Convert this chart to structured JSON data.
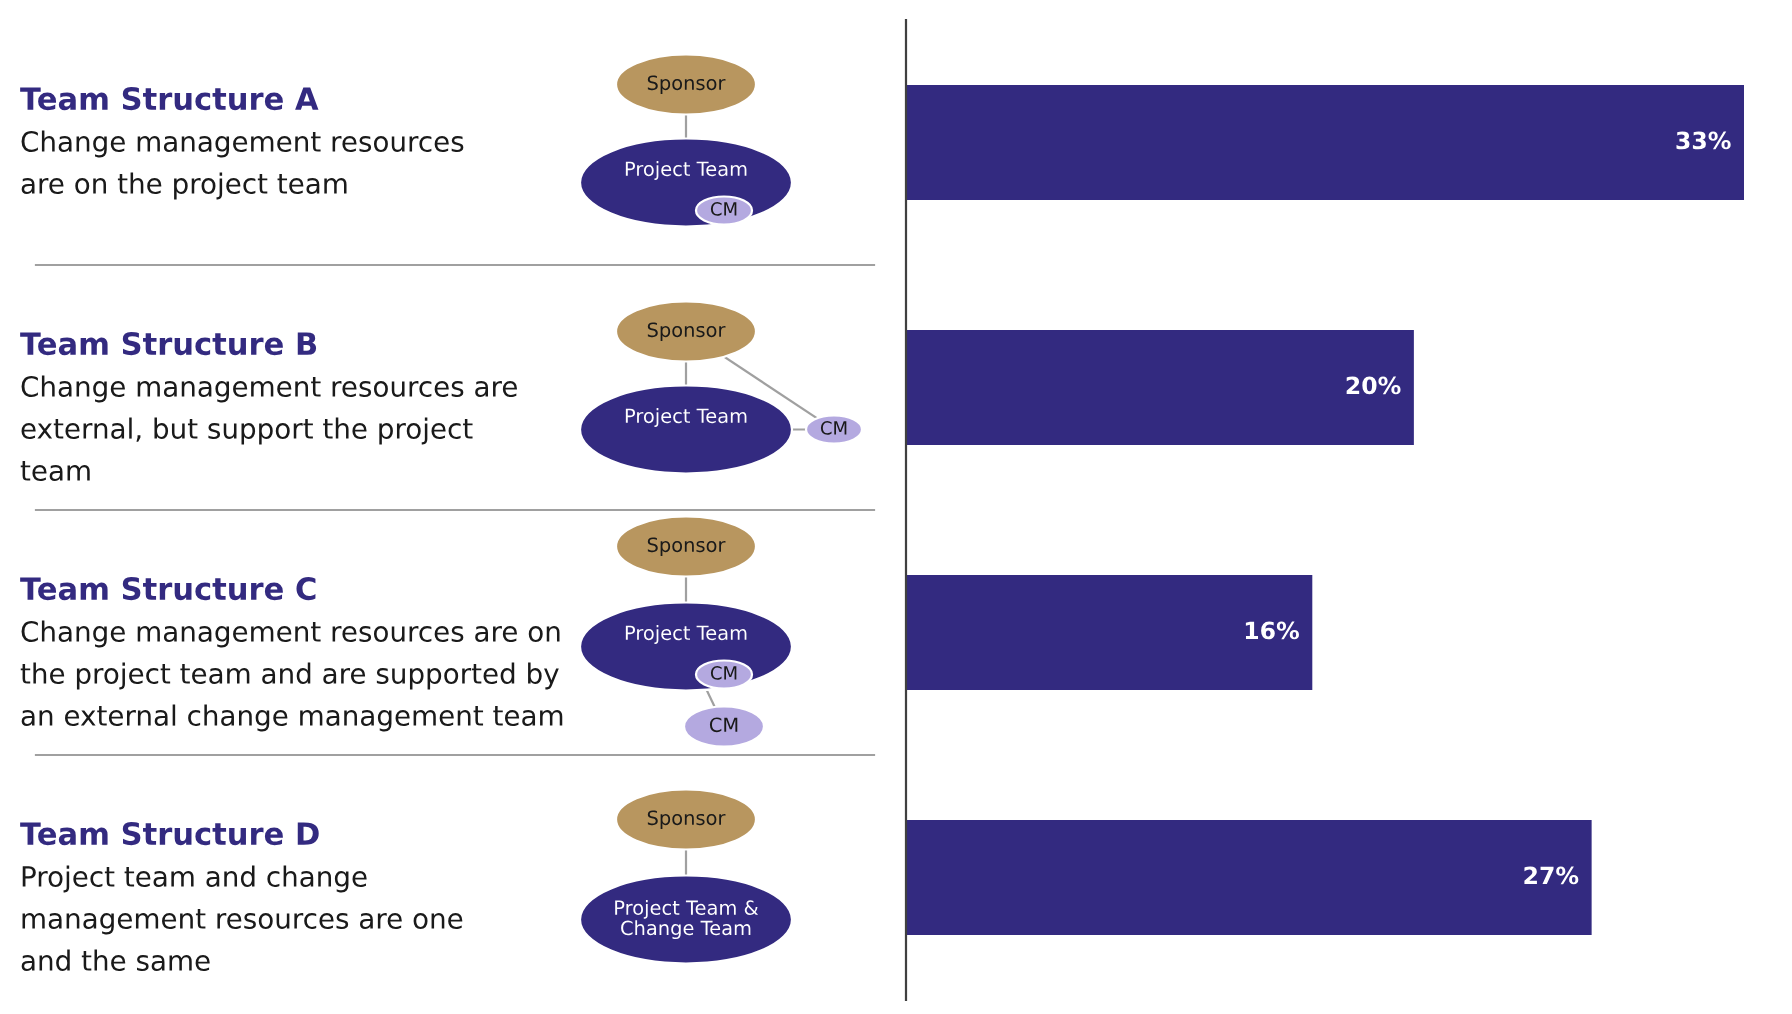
{
  "chart_data": {
    "type": "bar",
    "orientation": "horizontal",
    "categories": [
      "Team Structure A\nChange management resources\nare on the project team",
      "Team Structure B\nChange management resources are\nexternal, but support the project\nteam",
      "Team Structure C\nChange management resources are on\nthe project team and are supported by\nan external change management team",
      "Team Structure D\nProject team and change\nmanagement resources are one\nand the same"
    ],
    "values": [
      33,
      20,
      16,
      27
    ],
    "value_labels": [
      "33%",
      "20%",
      "16%",
      "27%"
    ],
    "color": "#332a80",
    "annotations": [
      "Sponsor",
      "Project Team",
      "CM",
      "Sponsor",
      "Project Team",
      "CM",
      "Sponsor",
      "Project Team",
      "CM",
      "CM",
      "Sponsor",
      "Project Team &\nChange Team"
    ]
  }
}
